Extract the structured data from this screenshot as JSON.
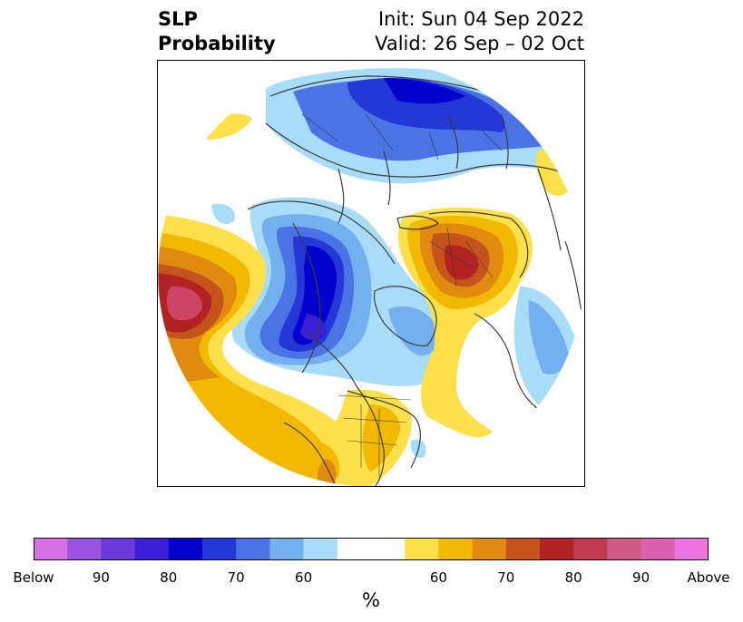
{
  "title": {
    "left_line1": "SLP",
    "left_line2": "Probability",
    "right_line1": "Init: Sun 04 Sep 2022",
    "right_line2": "Valid: 26 Sep – 02 Oct"
  },
  "colorbar": {
    "unit": "%",
    "colors": [
      "#d86fe8",
      "#9a55e0",
      "#6a3bd8",
      "#3b1fd6",
      "#0000cc",
      "#2438d8",
      "#4a74e6",
      "#74b0f0",
      "#a8dcf8",
      "#ffffff",
      "#ffffff",
      "#fee04a",
      "#f3b800",
      "#e08a10",
      "#c4541c",
      "#b22222",
      "#c03a50",
      "#cf5a84",
      "#dc5fb0",
      "#ea75dc"
    ],
    "ticks": [
      "Below",
      "90",
      "80",
      "70",
      "60",
      "60",
      "70",
      "80",
      "90",
      "Above"
    ]
  },
  "map": {
    "projection": "north-polar-stereographic",
    "legend_colors": {
      "below_strong": "#0000cc",
      "below_light": "#a8dcf8",
      "above_light": "#fee04a",
      "above_strong": "#b22222",
      "above_peak": "#cc4466",
      "coastline": "#3c3c3c"
    }
  }
}
